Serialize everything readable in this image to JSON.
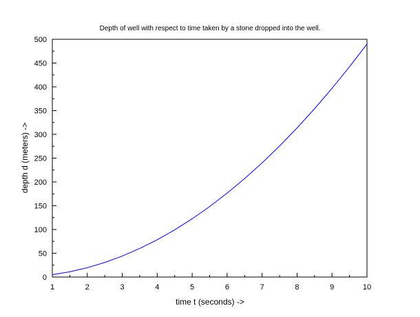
{
  "chart_data": {
    "type": "line",
    "title": "Depth of well with respect to time taken by a stone dropped into the well.",
    "xlabel": "time t (seconds) ->",
    "ylabel": "depth d (meters) ->",
    "xlim": [
      1,
      10
    ],
    "ylim": [
      0,
      500
    ],
    "x_ticks": [
      1,
      2,
      3,
      4,
      5,
      6,
      7,
      8,
      9,
      10
    ],
    "y_ticks": [
      0,
      50,
      100,
      150,
      200,
      250,
      300,
      350,
      400,
      450,
      500
    ],
    "grid": false,
    "legend": "none",
    "line_color": "#0000ff",
    "series": [
      {
        "x": [
          1,
          1.5,
          2,
          2.5,
          3,
          3.5,
          4,
          4.5,
          5,
          5.5,
          6,
          6.5,
          7,
          7.5,
          8,
          8.5,
          9,
          9.5,
          10
        ],
        "values": [
          4.9,
          11.0,
          19.6,
          30.6,
          44.1,
          60.0,
          78.4,
          99.2,
          122.5,
          148.2,
          176.4,
          207.0,
          240.1,
          275.6,
          313.6,
          354.0,
          396.9,
          442.2,
          490.0
        ]
      }
    ]
  }
}
